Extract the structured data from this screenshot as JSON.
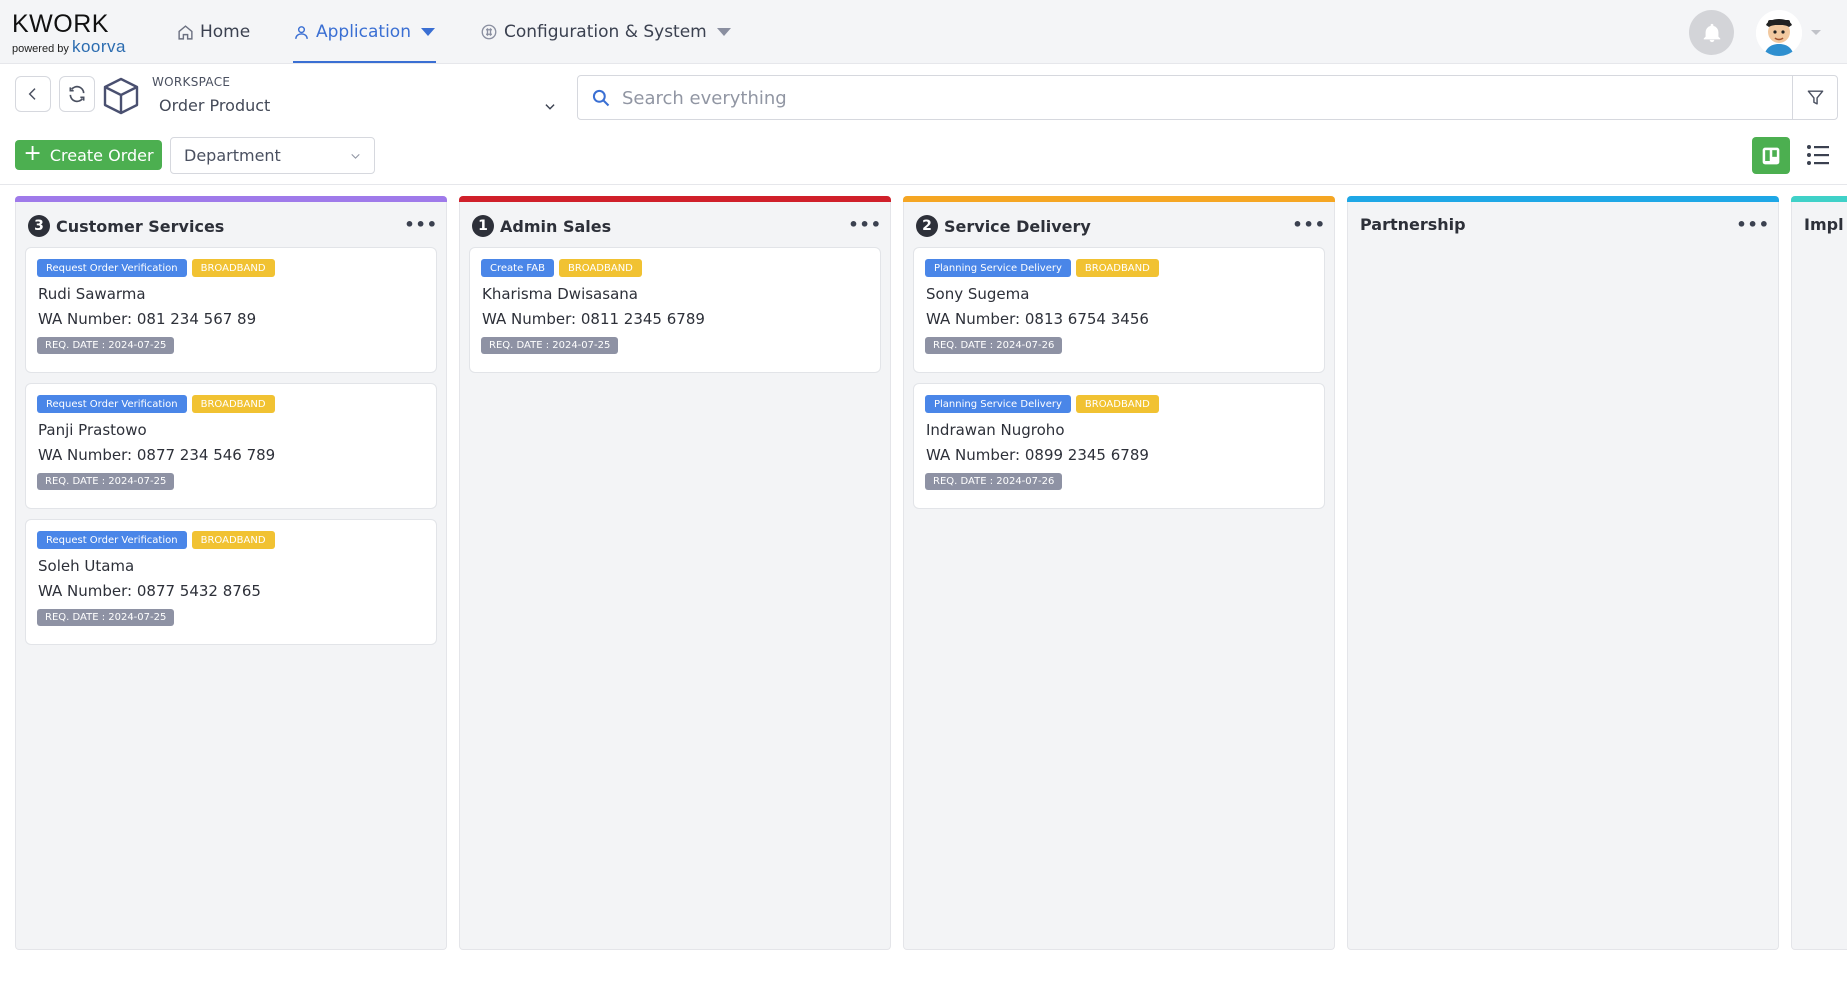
{
  "brand": {
    "name": "KWORK",
    "powered_by": "powered by",
    "vendor": "koorva"
  },
  "nav": {
    "home": "Home",
    "application": "Application",
    "configuration": "Configuration & System"
  },
  "workspace": {
    "label": "WORKSPACE",
    "value": "Order Product"
  },
  "search": {
    "placeholder": "Search everything"
  },
  "toolbar": {
    "create_label": "Create Order",
    "department_placeholder": "Department"
  },
  "columns": [
    {
      "title": "Customer Services",
      "count": "3",
      "color": "#9f7aea",
      "cards": [
        {
          "tag": "Request Order Verification",
          "category": "BROADBAND",
          "name": "Rudi Sawarma",
          "wa": "WA Number: 081 234 567 89",
          "date": "REQ. DATE : 2024-07-25"
        },
        {
          "tag": "Request Order Verification",
          "category": "BROADBAND",
          "name": "Panji Prastowo",
          "wa": "WA Number: 0877 234 546 789",
          "date": "REQ. DATE : 2024-07-25"
        },
        {
          "tag": "Request Order Verification",
          "category": "BROADBAND",
          "name": "Soleh Utama",
          "wa": "WA Number: 0877 5432 8765",
          "date": "REQ. DATE : 2024-07-25"
        }
      ]
    },
    {
      "title": "Admin Sales",
      "count": "1",
      "color": "#d0202a",
      "cards": [
        {
          "tag": "Create FAB",
          "category": "BROADBAND",
          "name": "Kharisma Dwisasana",
          "wa": "WA Number: 0811 2345 6789",
          "date": "REQ. DATE : 2024-07-25"
        }
      ]
    },
    {
      "title": "Service Delivery",
      "count": "2",
      "color": "#f5a623",
      "cards": [
        {
          "tag": "Planning Service Delivery",
          "category": "BROADBAND",
          "name": "Sony Sugema",
          "wa": "WA Number: 0813 6754 3456",
          "date": "REQ. DATE : 2024-07-26"
        },
        {
          "tag": "Planning Service Delivery",
          "category": "BROADBAND",
          "name": "Indrawan Nugroho",
          "wa": "WA Number: 0899 2345 6789",
          "date": "REQ. DATE : 2024-07-26"
        }
      ]
    },
    {
      "title": "Partnership",
      "count": "",
      "color": "#1ea7e6",
      "cards": []
    },
    {
      "title": "Impl",
      "count": "",
      "color": "#3fd1c8",
      "cards": []
    }
  ],
  "colors": {
    "accent": "#3a6fd3",
    "success": "#4caf50",
    "tag_blue": "#4a86e8",
    "tag_yellow": "#f1c232",
    "date_gray": "#8e92a4"
  }
}
